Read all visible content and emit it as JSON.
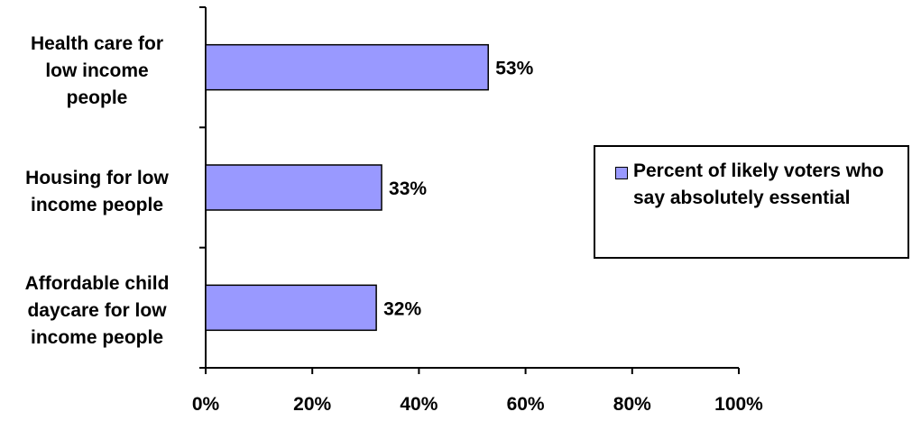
{
  "chart_data": {
    "type": "bar",
    "orientation": "horizontal",
    "categories": [
      "Health care for low income people",
      "Housing for low income people",
      "Affordable child daycare for low income people"
    ],
    "category_lines": [
      [
        "Health care for",
        "low income",
        "people"
      ],
      [
        "Housing for low",
        "income people"
      ],
      [
        "Affordable child",
        "daycare for low",
        "income people"
      ]
    ],
    "series": [
      {
        "name": "Percent of likely voters who say absolutely essential",
        "values": [
          53,
          33,
          32
        ]
      }
    ],
    "data_labels": [
      "53%",
      "33%",
      "32%"
    ],
    "xlim": [
      0,
      100
    ],
    "x_ticks": [
      "0%",
      "20%",
      "40%",
      "60%",
      "80%",
      "100%"
    ],
    "legend_position": "right",
    "grid": false,
    "colors": {
      "bar_fill": "#9999ff",
      "bar_stroke": "#000000"
    }
  }
}
